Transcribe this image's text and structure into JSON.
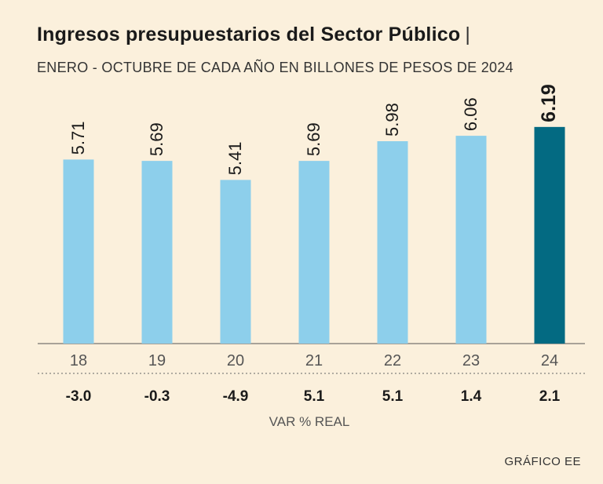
{
  "header": {
    "title": "Ingresos presupuestarios del Sector Público",
    "title_separator": "|",
    "subtitle": "ENERO - OCTUBRE DE CADA AÑO EN BILLONES DE PESOS DE 2024"
  },
  "chart_data": {
    "type": "bar",
    "title": "Ingresos presupuestarios del Sector Público",
    "subtitle": "ENERO - OCTUBRE DE CADA AÑO EN BILLONES DE PESOS DE 2024",
    "categories": [
      "18",
      "19",
      "20",
      "21",
      "22",
      "23",
      "24"
    ],
    "values": [
      5.71,
      5.69,
      5.41,
      5.69,
      5.98,
      6.06,
      6.19
    ],
    "value_labels": [
      "5.71",
      "5.69",
      "5.41",
      "5.69",
      "5.98",
      "6.06",
      "6.19"
    ],
    "highlight_index": 6,
    "bar_color": "#8dcfeb",
    "highlight_color": "#036a82",
    "ylim": [
      3.0,
      6.5
    ],
    "var_real": [
      "-3.0",
      "-0.3",
      "-4.9",
      "5.1",
      "5.1",
      "1.4",
      "2.1"
    ],
    "var_label": "VAR % REAL"
  },
  "footer": {
    "credit": "GRÁFICO EE"
  }
}
